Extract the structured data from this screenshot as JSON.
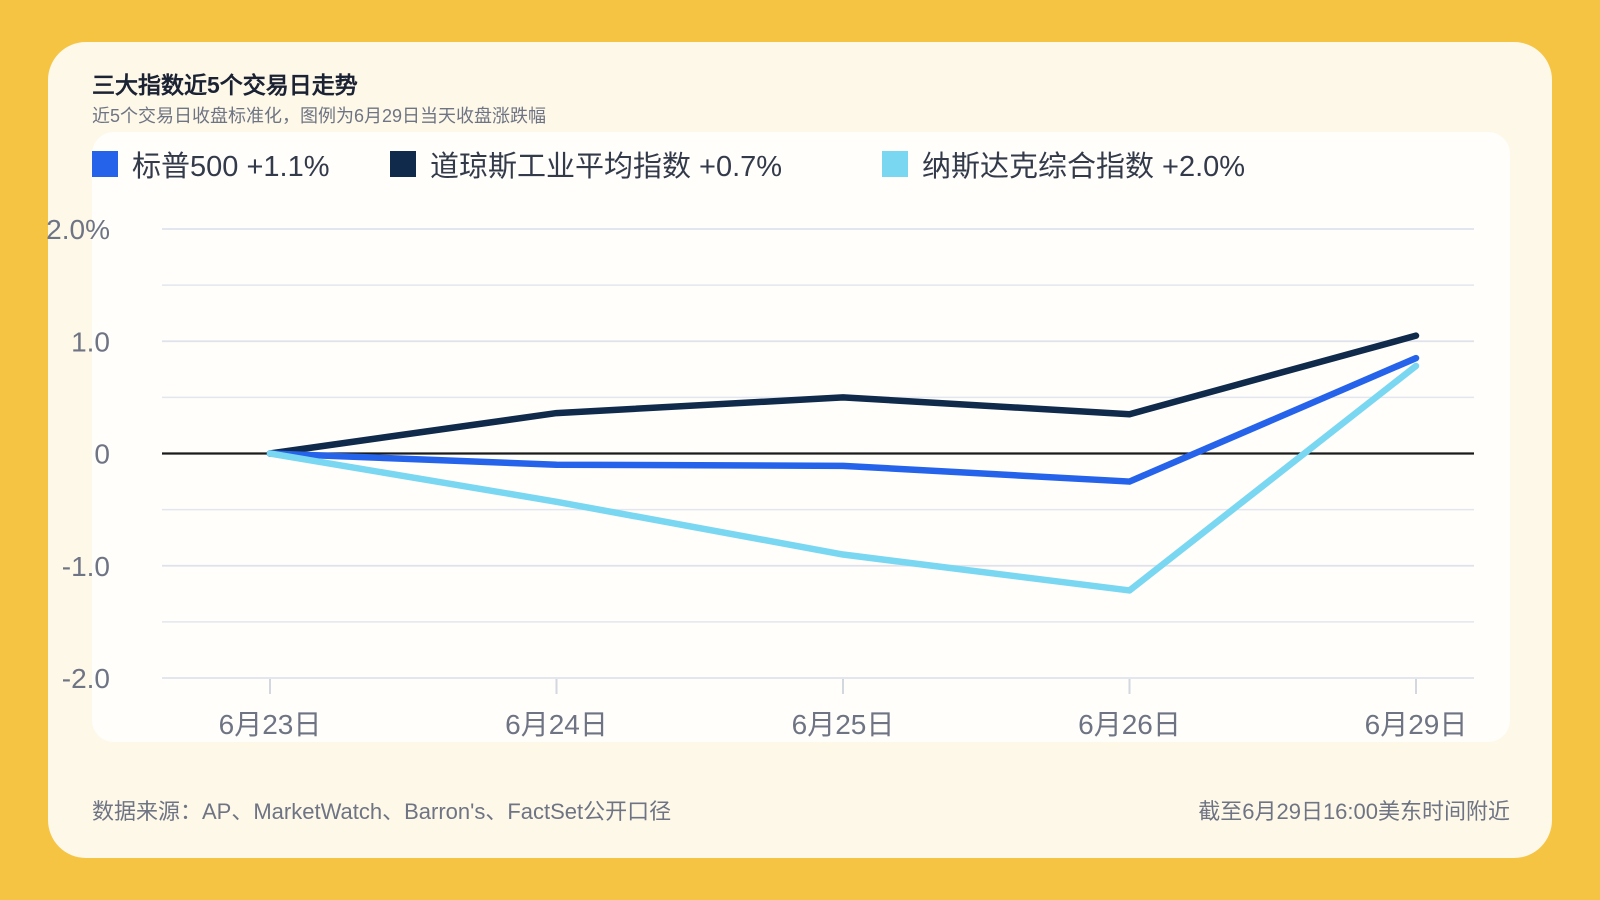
{
  "header": {
    "title": "三大指数近5个交易日走势",
    "subtitle": "近5个交易日收盘标准化，图例为6月29日当天收盘涨跌幅"
  },
  "legend": [
    {
      "label": "标普500 +1.1%",
      "color": "#2563EB"
    },
    {
      "label": "道琼斯工业平均指数 +0.7%",
      "color": "#0F2A4A"
    },
    {
      "label": "纳斯达克综合指数 +2.0%",
      "color": "#79D7F2"
    }
  ],
  "chart_data": {
    "type": "line",
    "categories": [
      "6月23日",
      "6月24日",
      "6月25日",
      "6月26日",
      "6月29日"
    ],
    "series": [
      {
        "name": "标普500 +1.1%",
        "color": "#2563EB",
        "values": [
          0,
          -0.1,
          -0.11,
          -0.25,
          0.85
        ]
      },
      {
        "name": "道琼斯工业平均指数 +0.7%",
        "color": "#0F2A4A",
        "values": [
          0,
          0.36,
          0.5,
          0.35,
          1.05
        ]
      },
      {
        "name": "纳斯达克综合指数 +2.0%",
        "color": "#79D7F2",
        "values": [
          0,
          -0.43,
          -0.9,
          -1.22,
          0.78
        ]
      }
    ],
    "ylim": [
      -2.0,
      2.0
    ],
    "yticks": [
      {
        "value": 2.0,
        "label": "2.0%"
      },
      {
        "value": 1.0,
        "label": "1.0"
      },
      {
        "value": 0,
        "label": "0"
      },
      {
        "value": -1.0,
        "label": "-1.0"
      },
      {
        "value": -2.0,
        "label": "-2.0"
      }
    ],
    "minor_gridlines": [
      1.5,
      0.5,
      -0.5,
      -1.5
    ],
    "grid": true,
    "zero_line": true,
    "legend_position": "top-left"
  },
  "footer": {
    "source": "数据来源：AP、MarketWatch、Barron's、FactSet公开口径",
    "timestamp": "截至6月29日16:00美东时间附近"
  }
}
